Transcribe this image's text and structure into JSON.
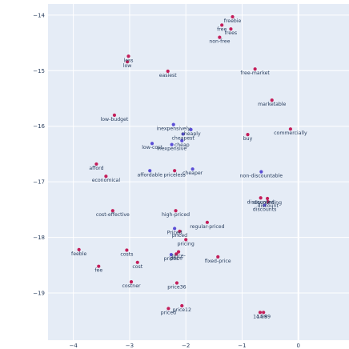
{
  "chart_data": {
    "type": "scatter",
    "title": "",
    "xlabel": "",
    "ylabel": "",
    "xlim": [
      -4.45,
      0.9
    ],
    "ylim": [
      -19.85,
      -13.8
    ],
    "xticks": [
      -4,
      -3,
      -2,
      -1,
      0
    ],
    "yticks": [
      -14,
      -15,
      -16,
      -17,
      -18,
      -19
    ],
    "grid": true,
    "plot_bgcolor": "#e5ecf6",
    "colors": {
      "red": "#c41e5a",
      "blue": "#5b4fd6"
    },
    "points": [
      {
        "label": "freebie",
        "x": -1.17,
        "y": -14.03,
        "c": "red"
      },
      {
        "label": "free",
        "x": -1.36,
        "y": -14.18,
        "c": "red"
      },
      {
        "label": "frees",
        "x": -1.2,
        "y": -14.25,
        "c": "red"
      },
      {
        "label": "non-free",
        "x": -1.4,
        "y": -14.4,
        "c": "red"
      },
      {
        "label": "less",
        "x": -3.02,
        "y": -14.74,
        "c": "red"
      },
      {
        "label": "low",
        "x": -3.04,
        "y": -14.84,
        "c": "red"
      },
      {
        "label": "easiest",
        "x": -2.32,
        "y": -15.01,
        "c": "red"
      },
      {
        "label": "free-market",
        "x": -0.77,
        "y": -14.97,
        "c": "red"
      },
      {
        "label": "marketable",
        "x": -0.47,
        "y": -15.53,
        "c": "red"
      },
      {
        "label": "low-budget",
        "x": -3.27,
        "y": -15.8,
        "c": "red"
      },
      {
        "label": "commercially",
        "x": -0.14,
        "y": -16.05,
        "c": "red"
      },
      {
        "label": "buy",
        "x": -0.9,
        "y": -16.15,
        "c": "red"
      },
      {
        "label": "inexpensively",
        "x": -2.22,
        "y": -15.97,
        "c": "blue"
      },
      {
        "label": "cheaply",
        "x": -1.91,
        "y": -16.06,
        "c": "blue"
      },
      {
        "label": "cheapest",
        "x": -2.05,
        "y": -16.14,
        "c": "blue"
      },
      {
        "label": "cheap",
        "x": -2.07,
        "y": -16.26,
        "c": "blue"
      },
      {
        "label": "inexpensive",
        "x": -2.25,
        "y": -16.33,
        "c": "blue"
      },
      {
        "label": "low-cost",
        "x": -2.6,
        "y": -16.31,
        "c": "blue"
      },
      {
        "label": "afford",
        "x": -3.59,
        "y": -16.68,
        "c": "red"
      },
      {
        "label": "economical",
        "x": -3.42,
        "y": -16.9,
        "c": "red"
      },
      {
        "label": "affordable",
        "x": -2.64,
        "y": -16.8,
        "c": "blue"
      },
      {
        "label": "priceless",
        "x": -2.2,
        "y": -16.8,
        "c": "red"
      },
      {
        "label": "cheaper",
        "x": -1.88,
        "y": -16.77,
        "c": "blue"
      },
      {
        "label": "non-discountable",
        "x": -0.66,
        "y": -16.82,
        "c": "blue"
      },
      {
        "label": "discounted",
        "x": -0.67,
        "y": -17.29,
        "c": "red"
      },
      {
        "label": "discount",
        "x": -0.54,
        "y": -17.36,
        "c": "red"
      },
      {
        "label": "discounting",
        "x": -0.55,
        "y": -17.3,
        "c": "red"
      },
      {
        "label": "discounts",
        "x": -0.6,
        "y": -17.42,
        "c": "blue"
      },
      {
        "label": "cost-effective",
        "x": -3.3,
        "y": -17.52,
        "c": "red"
      },
      {
        "label": "high-priced",
        "x": -2.18,
        "y": -17.52,
        "c": "red"
      },
      {
        "label": "regular-priced",
        "x": -1.62,
        "y": -17.73,
        "c": "red"
      },
      {
        "label": "Priced",
        "x": -2.2,
        "y": -17.84,
        "c": "blue"
      },
      {
        "label": "priced",
        "x": -2.11,
        "y": -17.89,
        "c": "red"
      },
      {
        "label": "pricing",
        "x": -2.0,
        "y": -18.04,
        "c": "red"
      },
      {
        "label": "feeble",
        "x": -3.9,
        "y": -18.22,
        "c": "red"
      },
      {
        "label": "costs",
        "x": -3.05,
        "y": -18.23,
        "c": "red"
      },
      {
        "label": "price-",
        "x": -2.13,
        "y": -18.26,
        "c": "red"
      },
      {
        "label": "prices",
        "x": -2.26,
        "y": -18.31,
        "c": "blue"
      },
      {
        "label": "price",
        "x": -2.17,
        "y": -18.3,
        "c": "red"
      },
      {
        "label": "fixed-price",
        "x": -1.43,
        "y": -18.35,
        "c": "red"
      },
      {
        "label": "cost",
        "x": -2.86,
        "y": -18.45,
        "c": "red"
      },
      {
        "label": "fee",
        "x": -3.55,
        "y": -18.52,
        "c": "red"
      },
      {
        "label": "costner",
        "x": -2.97,
        "y": -18.8,
        "c": "red"
      },
      {
        "label": "price36",
        "x": -2.16,
        "y": -18.82,
        "c": "red"
      },
      {
        "label": "price12",
        "x": -2.07,
        "y": -19.23,
        "c": "red"
      },
      {
        "label": "priced",
        "x": -2.31,
        "y": -19.28,
        "c": "red"
      },
      {
        "label": "14.99",
        "x": -0.68,
        "y": -19.35,
        "c": "red"
      },
      {
        "label": "14.89",
        "x": -0.62,
        "y": -19.35,
        "c": "red"
      }
    ]
  }
}
